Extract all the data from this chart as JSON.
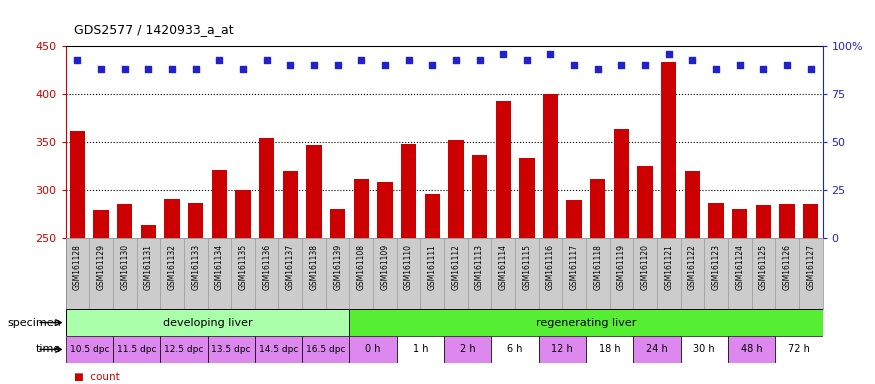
{
  "title": "GDS2577 / 1420933_a_at",
  "samples": [
    "GSM161128",
    "GSM161129",
    "GSM161130",
    "GSM161131",
    "GSM161132",
    "GSM161133",
    "GSM161134",
    "GSM161135",
    "GSM161136",
    "GSM161137",
    "GSM161138",
    "GSM161139",
    "GSM161108",
    "GSM161109",
    "GSM161110",
    "GSM161111",
    "GSM161112",
    "GSM161113",
    "GSM161114",
    "GSM161115",
    "GSM161116",
    "GSM161117",
    "GSM161118",
    "GSM161119",
    "GSM161120",
    "GSM161121",
    "GSM161122",
    "GSM161123",
    "GSM161124",
    "GSM161125",
    "GSM161126",
    "GSM161127"
  ],
  "counts": [
    362,
    279,
    285,
    264,
    291,
    287,
    321,
    300,
    354,
    320,
    347,
    280,
    312,
    308,
    348,
    296,
    352,
    337,
    393,
    333,
    400,
    290,
    312,
    364,
    325,
    433,
    320,
    287,
    280,
    284,
    286,
    286
  ],
  "percentile_ranks": [
    93,
    88,
    88,
    88,
    88,
    88,
    93,
    88,
    93,
    90,
    90,
    90,
    93,
    90,
    93,
    90,
    93,
    93,
    96,
    93,
    96,
    90,
    88,
    90,
    90,
    96,
    93,
    88,
    90,
    88,
    90,
    88
  ],
  "ylim_left": [
    250,
    450
  ],
  "ylim_right": [
    0,
    100
  ],
  "yticks_left": [
    250,
    300,
    350,
    400,
    450
  ],
  "yticks_right": [
    0,
    25,
    50,
    75,
    100
  ],
  "bar_color": "#cc0000",
  "dot_color": "#2222cc",
  "grid_color": "#000000",
  "dev_count": 12,
  "reg_count": 20,
  "dev_label": "developing liver",
  "reg_label": "regenerating liver",
  "dev_color": "#aaffaa",
  "reg_color": "#55ee33",
  "time_labels_dev": [
    "10.5 dpc",
    "11.5 dpc",
    "12.5 dpc",
    "13.5 dpc",
    "14.5 dpc",
    "16.5 dpc"
  ],
  "time_labels_reg": [
    "0 h",
    "1 h",
    "2 h",
    "6 h",
    "12 h",
    "18 h",
    "24 h",
    "30 h",
    "48 h",
    "72 h"
  ],
  "time_counts_reg": [
    2,
    2,
    2,
    2,
    2,
    2,
    2,
    2,
    2,
    2
  ],
  "time_color_purple": "#dd88ee",
  "time_color_white": "#ffffff",
  "axis_left_color": "#cc0000",
  "axis_right_color": "#2222cc",
  "bg_color": "#ffffff",
  "tick_bg_color": "#cccccc",
  "legend_count_color": "#cc0000",
  "legend_pct_color": "#2222cc"
}
